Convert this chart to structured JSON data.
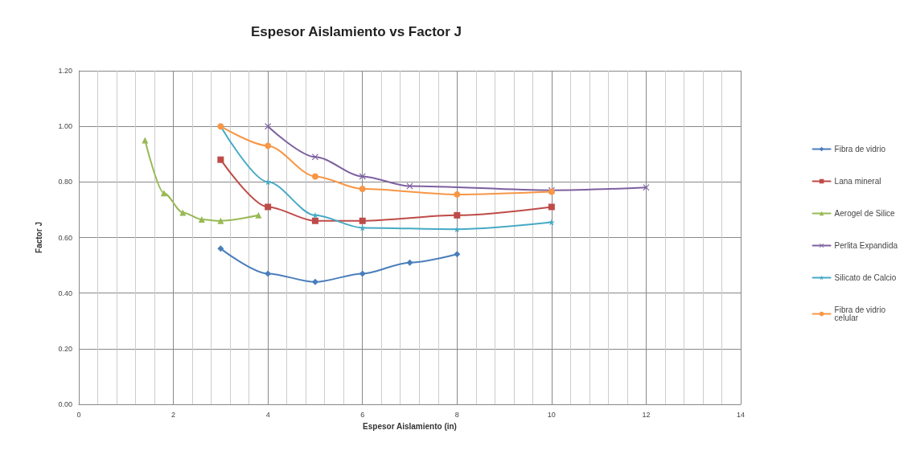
{
  "chart_data": {
    "type": "line",
    "title": "Espesor Aislamiento vs Factor J",
    "xlabel": "Espesor Aislamiento (in)",
    "ylabel": "Factor J",
    "xlim": [
      0,
      14
    ],
    "xticks": [
      0,
      2,
      4,
      6,
      8,
      10,
      12,
      14
    ],
    "ylim": [
      0,
      1.2
    ],
    "yticks": [
      {
        "value": 0,
        "label": "0.00"
      },
      {
        "value": 0.2,
        "label": "0.20"
      },
      {
        "value": 0.4,
        "label": "0.40"
      },
      {
        "value": 0.6,
        "label": "0.60"
      },
      {
        "value": 0.8,
        "label": "0.80"
      },
      {
        "value": 1,
        "label": "1.00"
      },
      {
        "value": 1.2,
        "label": "1.20"
      }
    ],
    "grid": true,
    "legend": "right",
    "line_style": "solid",
    "series": [
      {
        "name": "Fibra de vidrio",
        "color": "#4a7ebb",
        "marker": "diamond",
        "x": [
          3,
          4,
          5,
          6,
          7,
          8
        ],
        "values": [
          0.56,
          0.47,
          0.44,
          0.47,
          0.51,
          0.54
        ]
      },
      {
        "name": "Lana mineral",
        "color": "#be4b48",
        "marker": "square",
        "x": [
          3,
          4,
          5,
          6,
          8,
          10
        ],
        "values": [
          0.88,
          0.71,
          0.66,
          0.66,
          0.68,
          0.71
        ]
      },
      {
        "name": "Aerogel de Silice",
        "color": "#98b954",
        "marker": "triangle",
        "x": [
          1.4,
          1.8,
          2.2,
          2.6,
          3,
          3.8
        ],
        "values": [
          0.95,
          0.76,
          0.69,
          0.665,
          0.66,
          0.68
        ]
      },
      {
        "name": "Perlita Expandida",
        "color": "#7d60a0",
        "marker": "cross",
        "x": [
          4,
          5,
          6,
          7,
          10,
          12
        ],
        "values": [
          1.0,
          0.89,
          0.82,
          0.785,
          0.77,
          0.78
        ]
      },
      {
        "name": "Silicato de Calcio",
        "color": "#46aac5",
        "marker": "star",
        "x": [
          3,
          4,
          5,
          6,
          8,
          10
        ],
        "values": [
          1.0,
          0.8,
          0.68,
          0.635,
          0.63,
          0.655
        ]
      },
      {
        "name": "Fibra de vidrio celular",
        "color": "#f79646",
        "marker": "circle",
        "x": [
          3,
          4,
          5,
          6,
          8,
          10
        ],
        "values": [
          1.0,
          0.93,
          0.82,
          0.775,
          0.755,
          0.765
        ]
      }
    ]
  }
}
